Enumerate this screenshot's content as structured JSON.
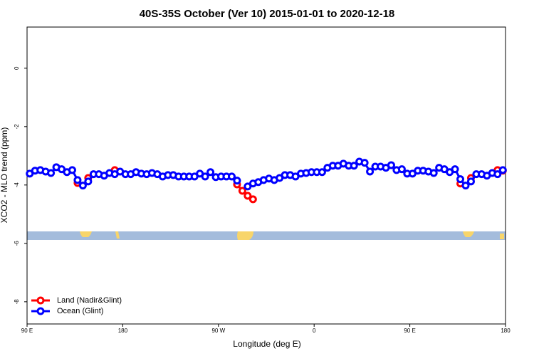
{
  "chart_data": {
    "type": "line",
    "title": "40S-35S October (Ver 10)   2015-01-01 to 2020-12-18",
    "x_label": "Longitude (deg E)",
    "y_label": "XCO2 - MLO trend (ppm)",
    "xlim": [
      90,
      540
    ],
    "ylim": [
      -8.76,
      1.41
    ],
    "xticks": [
      {
        "value": 90,
        "label": "90 E"
      },
      180,
      {
        "value": 270,
        "label": "90 W"
      },
      {
        "value": 360,
        "label": "0"
      },
      {
        "value": 450,
        "label": "90 E"
      },
      {
        "value": 540,
        "label": "180"
      }
    ],
    "yticks": [
      0,
      -2,
      -4,
      -6,
      -8
    ],
    "legend": "bottom-left",
    "x": [
      92.5,
      97.5,
      102.5,
      107.5,
      112.5,
      117.5,
      122.5,
      127.5,
      132.5,
      137.5,
      142.5,
      147.5,
      152.5,
      157.5,
      162.5,
      167.5,
      172.5,
      177.5,
      182.5,
      187.5,
      192.5,
      197.5,
      202.5,
      207.5,
      212.5,
      217.5,
      222.5,
      227.5,
      232.5,
      237.5,
      242.5,
      247.5,
      252.5,
      257.5,
      262.5,
      267.5,
      272.5,
      277.5,
      282.5,
      287.5,
      292.5,
      297.5,
      302.5,
      307.5,
      312.5,
      317.5,
      322.5,
      327.5,
      332.5,
      337.5,
      342.5,
      347.5,
      352.5,
      357.5,
      362.5,
      367.5,
      372.5,
      377.5,
      382.5,
      387.5,
      392.5,
      397.5,
      402.5,
      407.5,
      412.5,
      417.5,
      422.5,
      427.5,
      432.5,
      437.5,
      442.5,
      447.5,
      452.5,
      457.5,
      462.5,
      467.5,
      472.5,
      477.5,
      482.5,
      487.5,
      492.5,
      497.5,
      502.5,
      507.5,
      512.5,
      517.5,
      522.5,
      527.5,
      532.5,
      537.5
    ],
    "series": [
      {
        "name": "Land (Nadir&Glint)",
        "color": "#ff0000",
        "values": [
          null,
          null,
          null,
          null,
          null,
          null,
          null,
          null,
          null,
          -3.93,
          null,
          -3.76,
          null,
          null,
          null,
          null,
          -3.49,
          null,
          null,
          null,
          null,
          null,
          null,
          null,
          null,
          null,
          null,
          null,
          null,
          null,
          null,
          null,
          null,
          null,
          null,
          null,
          null,
          null,
          null,
          -3.98,
          -4.2,
          -4.37,
          -4.49,
          null,
          null,
          null,
          null,
          null,
          null,
          null,
          null,
          null,
          null,
          null,
          null,
          null,
          null,
          null,
          null,
          null,
          null,
          null,
          null,
          null,
          null,
          null,
          null,
          null,
          null,
          null,
          null,
          null,
          null,
          null,
          null,
          null,
          null,
          null,
          null,
          null,
          null,
          -3.95,
          null,
          -3.76,
          null,
          null,
          null,
          null,
          -3.49,
          -3.51
        ]
      },
      {
        "name": "Ocean (Glint)",
        "color": "#0000ff",
        "values": [
          -3.61,
          -3.51,
          -3.49,
          -3.54,
          -3.59,
          -3.39,
          -3.46,
          -3.56,
          -3.49,
          -3.83,
          -4.02,
          -3.88,
          -3.63,
          -3.63,
          -3.68,
          -3.59,
          -3.63,
          -3.54,
          -3.63,
          -3.63,
          -3.56,
          -3.61,
          -3.63,
          -3.59,
          -3.63,
          -3.71,
          -3.66,
          -3.66,
          -3.71,
          -3.71,
          -3.71,
          -3.71,
          -3.61,
          -3.71,
          -3.56,
          -3.73,
          -3.71,
          -3.71,
          -3.71,
          -3.85,
          null,
          -4.05,
          -3.95,
          -3.9,
          -3.83,
          -3.78,
          -3.83,
          -3.76,
          -3.66,
          -3.66,
          -3.71,
          -3.61,
          -3.59,
          -3.56,
          -3.56,
          -3.56,
          -3.41,
          -3.34,
          -3.34,
          -3.27,
          -3.34,
          -3.34,
          -3.2,
          -3.24,
          -3.54,
          -3.37,
          -3.37,
          -3.41,
          -3.32,
          -3.49,
          -3.46,
          -3.61,
          -3.61,
          -3.51,
          -3.51,
          -3.54,
          -3.59,
          -3.41,
          -3.46,
          -3.56,
          -3.46,
          -3.8,
          -4.02,
          -3.88,
          -3.63,
          -3.63,
          -3.68,
          -3.59,
          -3.63,
          -3.49
        ]
      }
    ]
  }
}
